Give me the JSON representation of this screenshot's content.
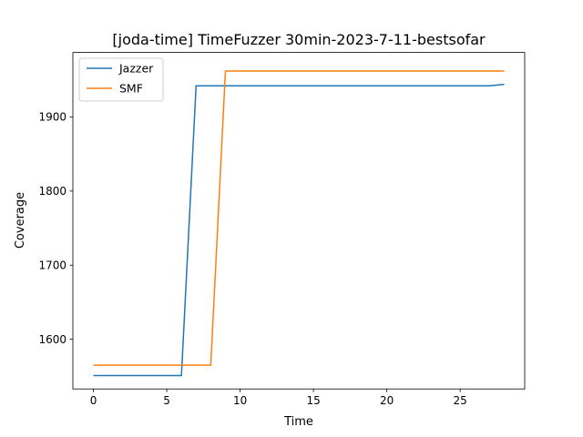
{
  "chart_data": {
    "type": "line",
    "title": "[joda-time] TimeFuzzer 30min-2023-7-11-bestsofar",
    "xlabel": "Time",
    "ylabel": "Coverage",
    "xlim": [
      -1.4,
      29.4
    ],
    "ylim": [
      1533,
      1987
    ],
    "xticks": [
      0,
      5,
      10,
      15,
      20,
      25
    ],
    "yticks": [
      1600,
      1700,
      1800,
      1900
    ],
    "grid": false,
    "legend_position": "top-left",
    "series": [
      {
        "name": "Jazzer",
        "color": "#1f77b4",
        "x": [
          0,
          1,
          2,
          3,
          4,
          5,
          6,
          7,
          8,
          9,
          10,
          11,
          12,
          13,
          14,
          15,
          16,
          17,
          18,
          19,
          20,
          21,
          22,
          23,
          24,
          25,
          26,
          27,
          28
        ],
        "y": [
          1551,
          1551,
          1551,
          1551,
          1551,
          1551,
          1551,
          1942,
          1942,
          1942,
          1942,
          1942,
          1942,
          1942,
          1942,
          1942,
          1942,
          1942,
          1942,
          1942,
          1942,
          1942,
          1942,
          1942,
          1942,
          1942,
          1942,
          1942,
          1944
        ]
      },
      {
        "name": "SMF",
        "color": "#ff7f0e",
        "x": [
          0,
          1,
          2,
          3,
          4,
          5,
          6,
          7,
          8,
          9,
          10,
          11,
          12,
          13,
          14,
          15,
          16,
          17,
          18,
          19,
          20,
          21,
          22,
          23,
          24,
          25,
          26,
          27,
          28
        ],
        "y": [
          1565,
          1565,
          1565,
          1565,
          1565,
          1565,
          1565,
          1565,
          1565,
          1962,
          1962,
          1962,
          1962,
          1962,
          1962,
          1962,
          1962,
          1962,
          1962,
          1962,
          1962,
          1962,
          1962,
          1962,
          1962,
          1962,
          1962,
          1962,
          1962
        ]
      }
    ]
  }
}
